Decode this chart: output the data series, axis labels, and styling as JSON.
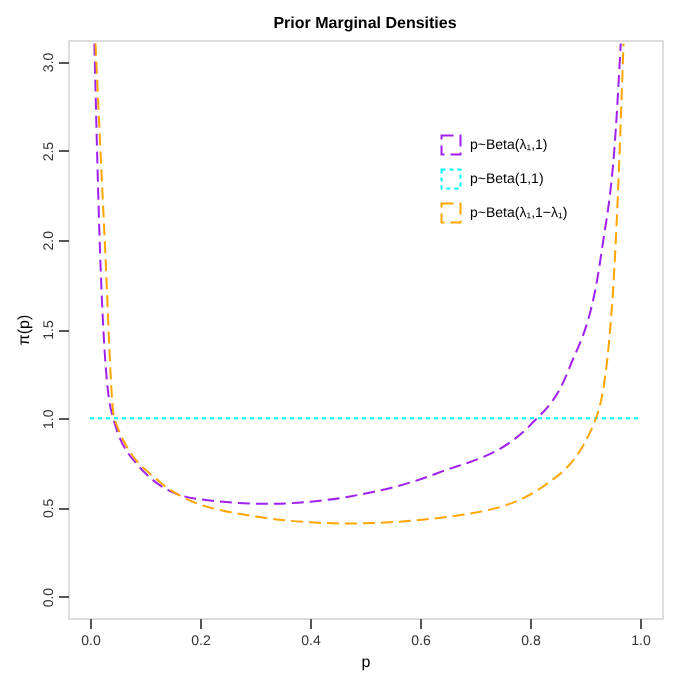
{
  "chart_data": {
    "type": "line",
    "title": "Prior Marginal Densities",
    "xlabel": "p",
    "ylabel": "π(p)",
    "xlim": [
      -0.04,
      1.04
    ],
    "ylim": [
      -0.12,
      3.12
    ],
    "xticks": [
      {
        "value": 0,
        "label": "0.0"
      },
      0.2,
      0.4,
      0.6,
      0.8,
      {
        "value": 1,
        "label": "1.0"
      }
    ],
    "yticks": [
      {
        "value": 0,
        "label": "0.0"
      },
      0.5,
      {
        "value": 1,
        "label": "1.0"
      },
      1.5,
      {
        "value": 2,
        "label": "2.0"
      },
      2.5,
      {
        "value": 3,
        "label": "3.0"
      }
    ],
    "grid": false,
    "legend": "top right",
    "marker": "none",
    "series": [
      {
        "name": "p~Beta(λ₁,1)",
        "color": "#a020f0",
        "line_style": "dashed",
        "x": [
          0.008,
          0.017,
          0.038,
          0.086,
          0.19,
          0.32,
          0.47,
          0.63,
          0.8,
          0.87,
          0.93,
          0.956,
          0.965
        ],
        "values": [
          3.1,
          2.05,
          1.05,
          0.74,
          0.55,
          0.52,
          0.56,
          0.69,
          0.96,
          1.27,
          1.93,
          2.62,
          3.1
        ]
      },
      {
        "name": "p~Beta(1,1)",
        "color": "#00ffff",
        "line_style": "dotted",
        "x": [
          0.0,
          1.0
        ],
        "values": [
          1.0,
          1.0
        ]
      },
      {
        "name": "p~Beta(λ₁,1−λ₁)",
        "color": "#ffa500",
        "line_style": "dashed",
        "x": [
          0.01,
          0.026,
          0.044,
          0.12,
          0.26,
          0.467,
          0.68,
          0.825,
          0.92,
          0.95,
          0.962,
          0.97
        ],
        "values": [
          3.1,
          2.05,
          1.0,
          0.66,
          0.47,
          0.41,
          0.46,
          0.62,
          1.0,
          1.67,
          2.42,
          3.1
        ]
      }
    ]
  }
}
